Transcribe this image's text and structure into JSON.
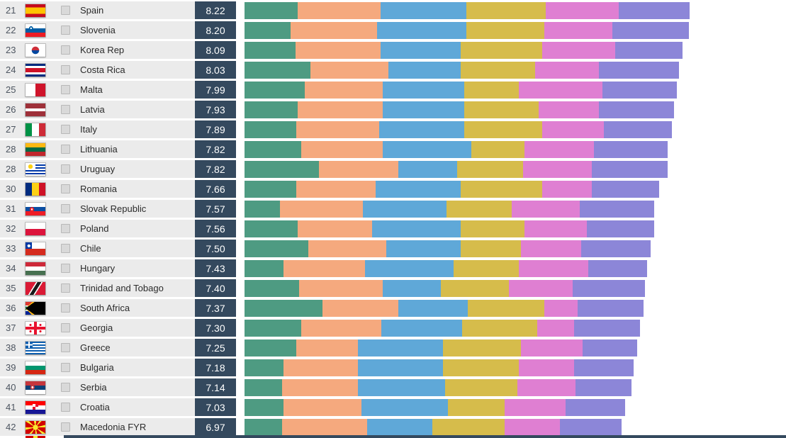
{
  "chart_data": {
    "type": "bar",
    "orientation": "horizontal",
    "stacked": true,
    "title": "",
    "xlabel": "",
    "ylabel": "",
    "segment_names": [
      "segment-1",
      "segment-2",
      "segment-3",
      "segment-4",
      "segment-5",
      "segment-6"
    ],
    "segment_colors": [
      "#4E9B82",
      "#F5A97E",
      "#5FA8D8",
      "#D6BC4B",
      "#DF7FD2",
      "#8C86D8"
    ],
    "rows": [
      {
        "rank": "21",
        "country": "Spain",
        "score": "8.22",
        "flag": "ES",
        "segments": [
          75,
          117,
          121,
          112,
          103,
          100
        ]
      },
      {
        "rank": "22",
        "country": "Slovenia",
        "score": "8.20",
        "flag": "SI",
        "segments": [
          65,
          122,
          126,
          110,
          96,
          108
        ]
      },
      {
        "rank": "23",
        "country": "Korea Rep",
        "score": "8.09",
        "flag": "KR",
        "segments": [
          72,
          120,
          113,
          115,
          103,
          95
        ]
      },
      {
        "rank": "24",
        "country": "Costa Rica",
        "score": "8.03",
        "flag": "CRI",
        "segments": [
          93,
          110,
          102,
          105,
          90,
          113
        ]
      },
      {
        "rank": "25",
        "country": "Malta",
        "score": "7.99",
        "flag": "MT",
        "segments": [
          85,
          110,
          115,
          77,
          118,
          105
        ]
      },
      {
        "rank": "26",
        "country": "Latvia",
        "score": "7.93",
        "flag": "LV",
        "segments": [
          75,
          120,
          115,
          105,
          85,
          106
        ]
      },
      {
        "rank": "27",
        "country": "Italy",
        "score": "7.89",
        "flag": "IT",
        "segments": [
          73,
          117,
          120,
          110,
          87,
          96
        ]
      },
      {
        "rank": "28",
        "country": "Lithuania",
        "score": "7.82",
        "flag": "LT",
        "segments": [
          80,
          115,
          125,
          75,
          98,
          104
        ]
      },
      {
        "rank": "28",
        "country": "Uruguay",
        "score": "7.82",
        "flag": "UY",
        "segments": [
          105,
          112,
          83,
          93,
          97,
          107
        ]
      },
      {
        "rank": "30",
        "country": "Romania",
        "score": "7.66",
        "flag": "RO",
        "segments": [
          73,
          112,
          120,
          115,
          70,
          95
        ]
      },
      {
        "rank": "31",
        "country": "Slovak Republic",
        "score": "7.57",
        "flag": "SK",
        "segments": [
          50,
          117,
          118,
          92,
          96,
          105
        ]
      },
      {
        "rank": "32",
        "country": "Poland",
        "score": "7.56",
        "flag": "PL",
        "segments": [
          75,
          105,
          125,
          90,
          88,
          95
        ]
      },
      {
        "rank": "33",
        "country": "Chile",
        "score": "7.50",
        "flag": "CL",
        "segments": [
          90,
          110,
          105,
          85,
          85,
          98
        ]
      },
      {
        "rank": "34",
        "country": "Hungary",
        "score": "7.43",
        "flag": "HU",
        "segments": [
          55,
          115,
          125,
          92,
          98,
          83
        ]
      },
      {
        "rank": "35",
        "country": "Trinidad and Tobago",
        "score": "7.40",
        "flag": "TT",
        "segments": [
          77,
          118,
          82,
          96,
          90,
          102
        ]
      },
      {
        "rank": "36",
        "country": "South Africa",
        "score": "7.37",
        "flag": "ZA",
        "segments": [
          110,
          107,
          98,
          108,
          47,
          93
        ]
      },
      {
        "rank": "37",
        "country": "Georgia",
        "score": "7.30",
        "flag": "GE",
        "segments": [
          80,
          113,
          114,
          106,
          52,
          93
        ]
      },
      {
        "rank": "38",
        "country": "Greece",
        "score": "7.25",
        "flag": "GR",
        "segments": [
          73,
          87,
          120,
          110,
          87,
          77
        ]
      },
      {
        "rank": "39",
        "country": "Bulgaria",
        "score": "7.18",
        "flag": "BG",
        "segments": [
          55,
          105,
          120,
          107,
          78,
          84
        ]
      },
      {
        "rank": "40",
        "country": "Serbia",
        "score": "7.14",
        "flag": "RS",
        "segments": [
          53,
          107,
          123,
          102,
          82,
          79
        ]
      },
      {
        "rank": "41",
        "country": "Croatia",
        "score": "7.03",
        "flag": "HR",
        "segments": [
          55,
          110,
          122,
          80,
          86,
          84
        ]
      },
      {
        "rank": "42",
        "country": "Macedonia FYR",
        "score": "6.97",
        "flag": "MK",
        "segments": [
          53,
          120,
          92,
          102,
          78,
          87
        ]
      }
    ]
  },
  "colors": {
    "score_box": "#34495e",
    "row_background": "#ebebeb",
    "page_background": "#ffffff",
    "rank_text": "#4d5560",
    "name_text": "#2b2b2b",
    "score_text": "#ffffff",
    "checkbox": "#d9d9d9",
    "footer_strip": "#34495e"
  },
  "flags": {
    "ES": "linear-gradient(180deg,#c60b1e 0 25%,#ffc400 25% 75%,#c60b1e 75% 100%)",
    "SI": "radial-gradient(circle at 28% 33%, #ffffff 0 1.2px, #005da4 1.2px 2.8px, transparent 3px), linear-gradient(180deg,#ffffff 0 33%,#005da4 33% 66%,#ed1c24 66% 100%)",
    "KR": "radial-gradient(circle at 50% 50%, transparent 0 5px, #ffffff 5.5px), conic-gradient(from 90deg at 50% 50%, #0047a0 0 50%, #cd2e3a 50% 100%)",
    "CRI": "linear-gradient(180deg,#002b7f 0 17%,#ffffff 17% 33%,#ce1126 33% 67%,#ffffff 67% 83%,#002b7f 83% 100%)",
    "MT": "linear-gradient(90deg,#ffffff 0 50%,#cf142b 50% 100%)",
    "LV": "linear-gradient(180deg,#9e3039 0 40%,#ffffff 40% 60%,#9e3039 60% 100%)",
    "IT": "linear-gradient(90deg,#009246 0 33%,#ffffff 33% 67%,#ce2b37 67% 100%)",
    "LT": "linear-gradient(180deg,#fdb913 0 33%,#006a44 33% 67%,#c1272d 67% 100%)",
    "UY": "radial-gradient(circle at 25% 28%, #fcd116 0 3px, transparent 3.3px), linear-gradient(#ffffff,#ffffff) 0 0/50% 55% no-repeat, repeating-linear-gradient(180deg,#ffffff 0 2px,#0038a8 2px 4px)",
    "RO": "linear-gradient(90deg,#002b7f 0 33%,#fcd116 33% 67%,#ce1126 67% 100%)",
    "SK": "radial-gradient(circle at 32% 52%, #ffffff 0 1.2px, #ee1c25 1.2px 3px, transparent 3.2px), linear-gradient(180deg,#ffffff 0 33%,#0b4ea2 33% 67%,#ee1c25 67% 100%)",
    "PL": "linear-gradient(180deg,#ffffff 0 50%,#dc143c 50% 100%)",
    "CL": "radial-gradient(circle at 17% 27%, #ffffff 0 2px, transparent 2.2px), linear-gradient(90deg,#0039a6 0 33%, transparent 33%) 0 0/100% 50% no-repeat, linear-gradient(180deg,#ffffff 0 50%,#d52b1e 50% 100%)",
    "HU": "linear-gradient(180deg,#ce2939 0 33%,#ffffff 33% 67%,#477050 67% 100%)",
    "TT": "linear-gradient(122deg,#da1a35 0 38%,#ffffff 38% 43%,#1a1a1a 43% 57%,#ffffff 57% 62%,#da1a35 62% 100%)",
    "ZA": "conic-gradient(from 55deg at 0% 50%, #000000 0 70deg, transparent 70deg), conic-gradient(from 45deg at 0% 50%, #ffb612 0 90deg, transparent 90deg), linear-gradient(180deg, transparent 0 27%, #ffffff 27% 36%, #007a4d 36% 64%, #ffffff 64% 73%, transparent 73%), linear-gradient(180deg,#de3831 0 50%,#002395 50% 100%)",
    "GE": "linear-gradient(90deg,transparent 0 12px,#e8112d 12px 16px,transparent 16px), linear-gradient(180deg,transparent 0 7px,#e8112d 7px 11px,transparent 11px), radial-gradient(circle at 25% 25%, #e8112d 0 1.5px, transparent 1.7px), radial-gradient(circle at 75% 25%, #e8112d 0 1.5px, transparent 1.7px), radial-gradient(circle at 25% 75%, #e8112d 0 1.5px, transparent 1.7px), radial-gradient(circle at 75% 75%, #e8112d 0 1.5px, transparent 1.7px), linear-gradient(#ffffff,#ffffff)",
    "GR": "linear-gradient(90deg,transparent 0 4px,#ffffff 4px 6px,transparent 6px) 0 0/10px 9px no-repeat, linear-gradient(180deg,transparent 0 3.5px,#ffffff 3.5px 5.5px,transparent 5.5px) 0 0/10px 9px no-repeat, linear-gradient(#0d5eaf,#0d5eaf) 0 0/10px 9px no-repeat, repeating-linear-gradient(180deg,#0d5eaf 0 2px,#ffffff 2px 4px)",
    "BG": "linear-gradient(180deg,#ffffff 0 33%,#00966e 33% 67%,#d62612 67% 100%)",
    "RS": "radial-gradient(circle at 35% 48%, #ffffff 0 1.5px, #c6363c 1.5px 3px, transparent 3.2px), linear-gradient(180deg,#c6363c 0 33%,#0c4076 33% 67%,#ffffff 67% 100%)",
    "HR": "repeating-conic-gradient(#e8112d 0 90deg,#ffffff 90deg 180deg) 50% 42%/8px 8px no-repeat, linear-gradient(180deg,#ff0000 0 33%,#ffffff 33% 67%,#171796 67% 100%)",
    "MK": "radial-gradient(circle at 50% 50%, #f8e92e 0 3.5px, transparent 3.8px), conic-gradient(from -7deg, #f8e92e 0 14deg, #d20000 14deg 38deg, #f8e92e 38deg 52deg, #d20000 52deg 83deg, #f8e92e 83deg 97deg, #d20000 97deg 128deg, #f8e92e 128deg 142deg, #d20000 142deg 173deg, #f8e92e 173deg 187deg, #d20000 187deg 218deg, #f8e92e 218deg 232deg, #d20000 232deg 263deg, #f8e92e 263deg 277deg, #d20000 277deg 308deg, #f8e92e 308deg 322deg, #d20000 322deg 353deg, #f8e92e 353deg 360deg)",
    "NEXT": "linear-gradient(90deg,#d20000 0 40%,#f8e92e 40% 60%,#d20000 60% 100%)"
  }
}
